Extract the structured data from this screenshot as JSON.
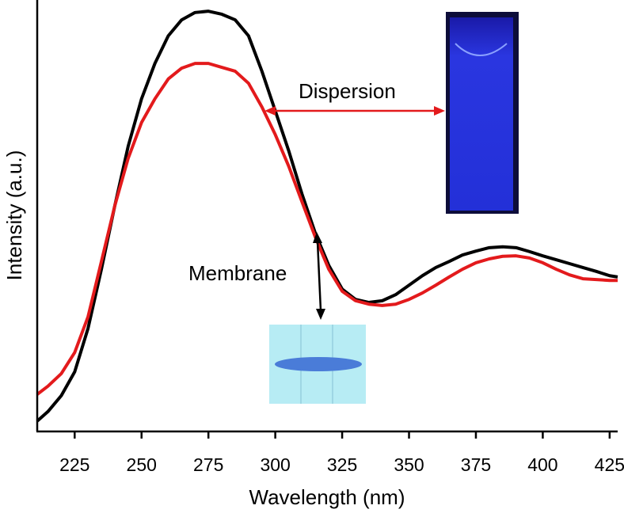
{
  "chart_data": {
    "type": "line",
    "x_label": "Wavelength (nm)",
    "y_label": "Intensity (a.u.)",
    "x": [
      211,
      215,
      220,
      225,
      230,
      235,
      240,
      245,
      250,
      255,
      260,
      265,
      270,
      275,
      280,
      285,
      290,
      295,
      300,
      305,
      310,
      315,
      320,
      325,
      330,
      335,
      340,
      345,
      350,
      355,
      360,
      365,
      370,
      375,
      380,
      385,
      390,
      395,
      400,
      405,
      410,
      415,
      420,
      425,
      428
    ],
    "series": [
      {
        "name": "Membrane",
        "color": "#000000",
        "values": [
          0.024,
          0.046,
          0.083,
          0.138,
          0.239,
          0.376,
          0.523,
          0.661,
          0.771,
          0.853,
          0.917,
          0.954,
          0.971,
          0.974,
          0.967,
          0.954,
          0.917,
          0.835,
          0.743,
          0.651,
          0.55,
          0.459,
          0.385,
          0.33,
          0.306,
          0.299,
          0.303,
          0.317,
          0.339,
          0.361,
          0.38,
          0.394,
          0.409,
          0.418,
          0.426,
          0.428,
          0.426,
          0.417,
          0.407,
          0.398,
          0.389,
          0.38,
          0.371,
          0.361,
          0.358
        ]
      },
      {
        "name": "Dispersion",
        "color": "#e31a1c",
        "values": [
          0.086,
          0.105,
          0.134,
          0.183,
          0.266,
          0.394,
          0.523,
          0.633,
          0.716,
          0.771,
          0.817,
          0.842,
          0.853,
          0.853,
          0.844,
          0.835,
          0.807,
          0.752,
          0.688,
          0.615,
          0.532,
          0.45,
          0.376,
          0.325,
          0.303,
          0.295,
          0.292,
          0.295,
          0.306,
          0.321,
          0.339,
          0.358,
          0.376,
          0.391,
          0.4,
          0.406,
          0.407,
          0.402,
          0.391,
          0.376,
          0.363,
          0.354,
          0.352,
          0.35,
          0.35
        ]
      }
    ],
    "xlim": [
      211,
      428
    ],
    "xticks": [
      225,
      250,
      275,
      300,
      325,
      350,
      375,
      400,
      425
    ],
    "ylim": [
      0,
      1
    ]
  }
}
